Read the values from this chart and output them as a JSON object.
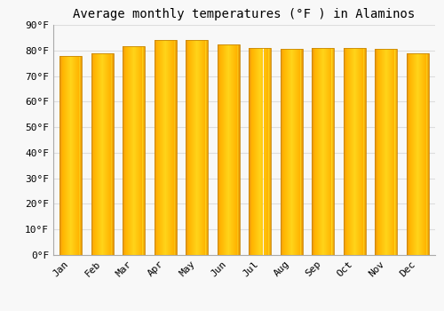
{
  "title": "Average monthly temperatures (°F ) in Alaminos",
  "months": [
    "Jan",
    "Feb",
    "Mar",
    "Apr",
    "May",
    "Jun",
    "Jul",
    "Aug",
    "Sep",
    "Oct",
    "Nov",
    "Dec"
  ],
  "values": [
    78,
    79,
    81.5,
    84,
    84,
    82.5,
    81,
    80.5,
    81,
    81,
    80.5,
    79
  ],
  "bar_color_main": "#FFAA00",
  "bar_color_left": "#E8920A",
  "bar_color_right": "#FFD060",
  "bar_edge_color": "#C8880A",
  "background_color": "#F8F8F8",
  "grid_color": "#DDDDDD",
  "ylim": [
    0,
    90
  ],
  "yticks": [
    0,
    10,
    20,
    30,
    40,
    50,
    60,
    70,
    80,
    90
  ],
  "ytick_labels": [
    "0°F",
    "10°F",
    "20°F",
    "30°F",
    "40°F",
    "50°F",
    "60°F",
    "70°F",
    "80°F",
    "90°F"
  ],
  "title_fontsize": 10,
  "tick_fontsize": 8,
  "font_family": "monospace"
}
